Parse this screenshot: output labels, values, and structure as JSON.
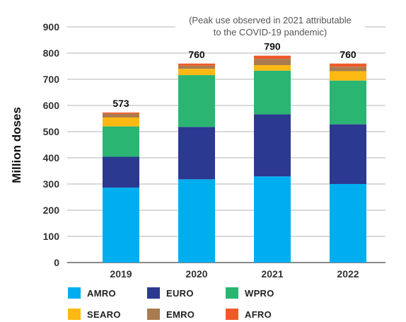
{
  "chart_data": {
    "type": "bar",
    "stacked": true,
    "categories": [
      "2019",
      "2020",
      "2021",
      "2022"
    ],
    "series": [
      {
        "name": "AMRO",
        "color": "#00aeef",
        "values": [
          286,
          318,
          329,
          300
        ]
      },
      {
        "name": "EURO",
        "color": "#2b3990",
        "values": [
          118,
          200,
          237,
          228
        ]
      },
      {
        "name": "WPRO",
        "color": "#2ab573",
        "values": [
          116,
          198,
          167,
          167
        ]
      },
      {
        "name": "SEARO",
        "color": "#fdb913",
        "values": [
          34,
          24,
          21,
          36
        ]
      },
      {
        "name": "EMRO",
        "color": "#a97c50",
        "values": [
          14,
          12,
          24,
          17
        ]
      },
      {
        "name": "AFRO",
        "color": "#ef5a28",
        "values": [
          5,
          8,
          12,
          12
        ]
      }
    ],
    "totals": [
      "573",
      "760",
      "790",
      "760"
    ],
    "ylabel": "Million doses",
    "xlabel": "",
    "ylim": [
      0,
      900
    ],
    "yticks": [
      "0",
      "100",
      "200",
      "300",
      "400",
      "500",
      "600",
      "700",
      "800",
      "900"
    ],
    "annotation": [
      "(Peak use observed in 2021 attributable",
      "to the COVID-19 pandemic)"
    ],
    "grid": true,
    "legend_position": "bottom"
  }
}
